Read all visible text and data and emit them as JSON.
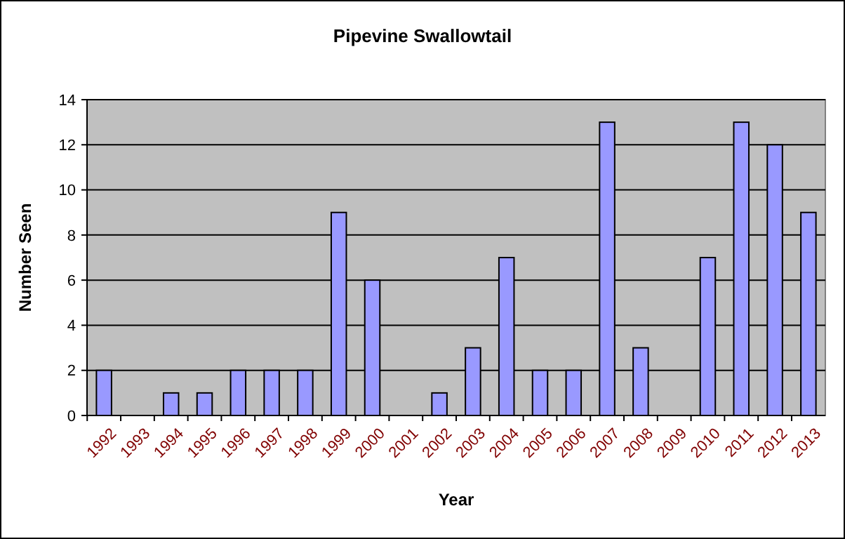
{
  "chart_data": {
    "type": "bar",
    "title": "Pipevine Swallowtail",
    "xlabel": "Year",
    "ylabel": "Number Seen",
    "categories": [
      "1992",
      "1993",
      "1994",
      "1995",
      "1996",
      "1997",
      "1998",
      "1999",
      "2000",
      "2001",
      "2002",
      "2003",
      "2004",
      "2005",
      "2006",
      "2007",
      "2008",
      "2009",
      "2010",
      "2011",
      "2012",
      "2013"
    ],
    "values": [
      2,
      0,
      1,
      1,
      2,
      2,
      2,
      9,
      6,
      0,
      1,
      3,
      7,
      2,
      2,
      13,
      3,
      0,
      7,
      13,
      12,
      9
    ],
    "color": "#9999ff",
    "ylim": [
      0,
      14
    ],
    "yticks": [
      0,
      2,
      4,
      6,
      8,
      10,
      12,
      14
    ],
    "grid": "y"
  }
}
